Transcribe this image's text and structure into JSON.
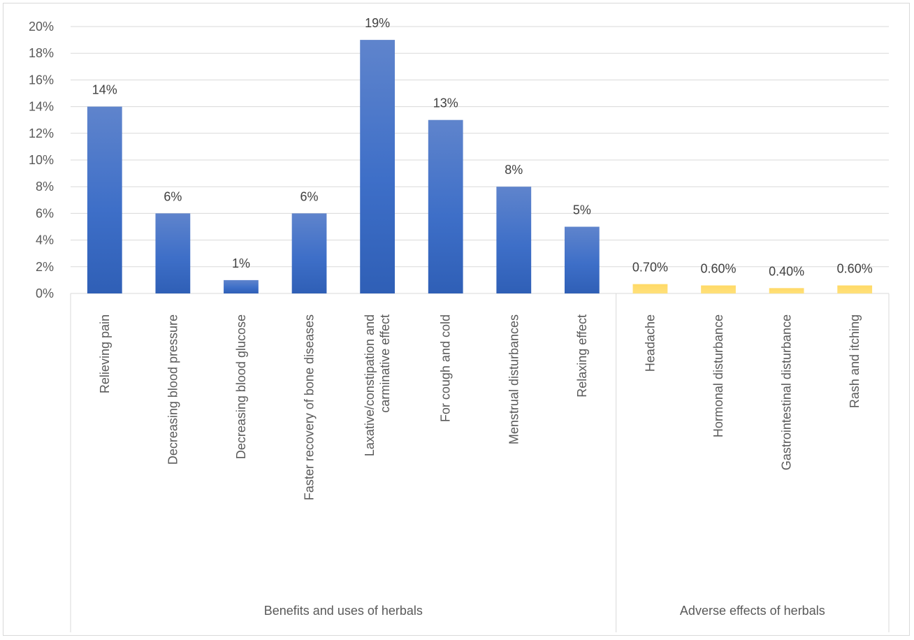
{
  "chart_data": {
    "type": "bar",
    "title": "",
    "xlabel": "",
    "ylabel": "",
    "ylim": [
      0,
      0.2
    ],
    "y_tick_step": 0.02,
    "y_tick_labels": [
      "0%",
      "2%",
      "4%",
      "6%",
      "8%",
      "10%",
      "12%",
      "14%",
      "16%",
      "18%",
      "20%"
    ],
    "grid": true,
    "legend": "none",
    "groups": [
      {
        "name": "Benefits and uses of herbals",
        "color": "#4472c4",
        "categories": [
          "Relieving pain",
          "Decreasing blood pressure",
          "Decreasing blood glucose",
          "Faster recovery of bone diseases",
          "Laxative/constipation and carminative effect",
          "For cough and cold",
          "Menstrual disturbances",
          "Relaxing effect"
        ],
        "values": [
          0.14,
          0.06,
          0.01,
          0.06,
          0.19,
          0.13,
          0.08,
          0.05
        ],
        "labels": [
          "14%",
          "6%",
          "1%",
          "6%",
          "19%",
          "13%",
          "8%",
          "5%"
        ]
      },
      {
        "name": "Adverse effects of herbals",
        "color": "#ffd966",
        "categories": [
          "Headache",
          "Hormonal disturbance",
          "Gastrointestinal disturbance",
          "Rash and itching"
        ],
        "values": [
          0.007,
          0.006,
          0.004,
          0.006
        ],
        "labels": [
          "0.70%",
          "0.60%",
          "0.40%",
          "0.60%"
        ]
      }
    ]
  }
}
